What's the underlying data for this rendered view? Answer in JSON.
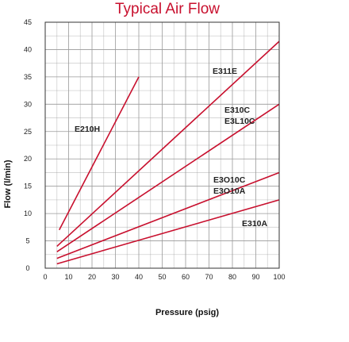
{
  "chart_data": {
    "type": "line",
    "title": "Typical Air Flow",
    "xlabel": "Pressure (psig)",
    "ylabel": "Flow (l/min)",
    "xlim": [
      0,
      100
    ],
    "ylim": [
      0,
      45
    ],
    "x_ticks": [
      0,
      10,
      20,
      30,
      40,
      50,
      60,
      70,
      80,
      90,
      100
    ],
    "y_ticks": [
      0,
      5,
      10,
      15,
      20,
      25,
      30,
      35,
      40,
      45
    ],
    "grid": true,
    "color": "#c8102e",
    "series": [
      {
        "name": "E210H",
        "x": [
          6,
          40
        ],
        "y": [
          7,
          35
        ]
      },
      {
        "name": "E311E",
        "x": [
          5,
          100
        ],
        "y": [
          4,
          41.5
        ]
      },
      {
        "name": "E310C E3L10C",
        "x": [
          5,
          100
        ],
        "y": [
          3,
          30
        ]
      },
      {
        "name": "E3O10C E3O10A",
        "x": [
          5,
          100
        ],
        "y": [
          1.8,
          17.5
        ]
      },
      {
        "name": "E310A",
        "x": [
          5,
          100
        ],
        "y": [
          0.8,
          12.5
        ]
      }
    ],
    "annotations": [
      {
        "lines": [
          "E311E"
        ],
        "series": 1
      },
      {
        "lines": [
          "E310C",
          "E3L10C"
        ],
        "series": 2
      },
      {
        "lines": [
          "E210H"
        ],
        "series": 0
      },
      {
        "lines": [
          "E3O10C",
          "E3O10A"
        ],
        "series": 3
      },
      {
        "lines": [
          "E310A"
        ],
        "series": 4
      }
    ]
  }
}
